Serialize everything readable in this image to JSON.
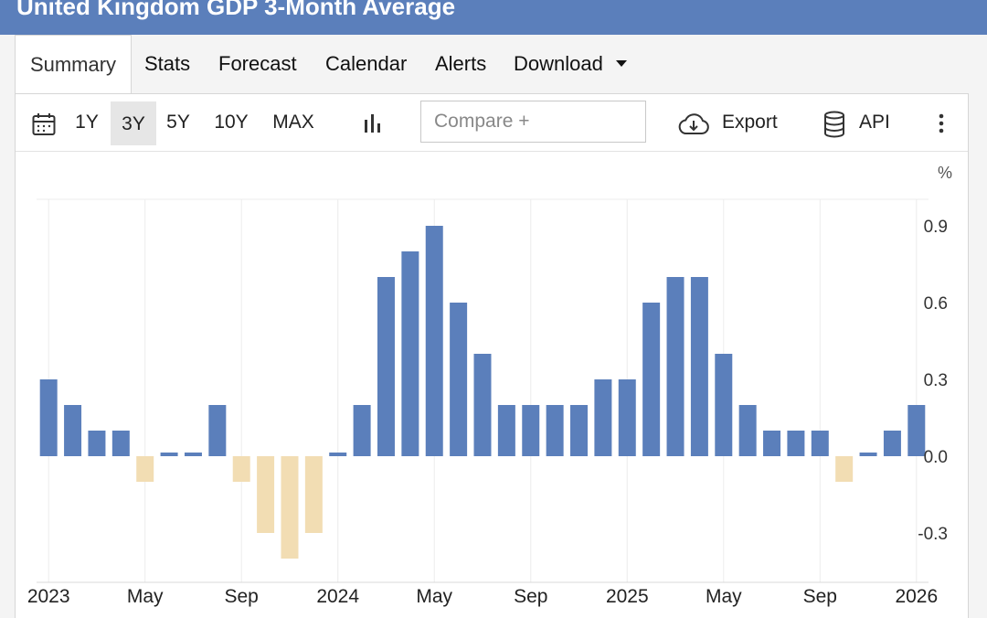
{
  "page": {
    "title": "United Kingdom GDP 3-Month Average"
  },
  "tabs": [
    {
      "label": "Summary",
      "active": true
    },
    {
      "label": "Stats"
    },
    {
      "label": "Forecast"
    },
    {
      "label": "Calendar"
    },
    {
      "label": "Alerts"
    },
    {
      "label": "Download",
      "dropdown": true
    }
  ],
  "toolbar": {
    "ranges": [
      "1Y",
      "3Y",
      "5Y",
      "10Y",
      "MAX"
    ],
    "active_range": "3Y",
    "compare_placeholder": "Compare +",
    "export_label": "Export",
    "api_label": "API",
    "icons": [
      "calendar-icon",
      "bar-chart-icon",
      "cloud-download-icon",
      "database-icon",
      "more-vertical-icon"
    ]
  },
  "colors": {
    "positive": "#5b7fbb",
    "negative": "#f2ddb3",
    "header": "#5b7fbb"
  },
  "chart_data": {
    "type": "bar",
    "title": "United Kingdom GDP 3-Month Average",
    "unit": "%",
    "ylim": [
      -0.4,
      1.0
    ],
    "yticks": [
      {
        "v": 0.9,
        "label": "0.9"
      },
      {
        "v": 0.6,
        "label": "0.6"
      },
      {
        "v": 0.3,
        "label": "0.3"
      },
      {
        "v": 0.0,
        "label": "0.0"
      },
      {
        "v": -0.3,
        "label": "-0.3"
      }
    ],
    "categories": [
      "Jan 2023",
      "Feb 2023",
      "Mar 2023",
      "Apr 2023",
      "May 2023",
      "Jun 2023",
      "Jul 2023",
      "Aug 2023",
      "Sep 2023",
      "Oct 2023",
      "Nov 2023",
      "Dec 2023",
      "Jan 2024",
      "Feb 2024",
      "Mar 2024",
      "Apr 2024",
      "May 2024",
      "Jun 2024",
      "Jul 2024",
      "Aug 2024",
      "Sep 2024",
      "Oct 2024",
      "Nov 2024",
      "Dec 2024",
      "Jan 2025",
      "Feb 2025",
      "Mar 2025",
      "Apr 2025",
      "May 2025",
      "Jun 2025",
      "Jul 2025",
      "Aug 2025",
      "Sep 2025",
      "Oct 2025",
      "Nov 2025",
      "Dec 2025",
      "Jan 2026"
    ],
    "values": [
      0.3,
      0.2,
      0.1,
      0.1,
      -0.1,
      0.01,
      0.01,
      0.2,
      -0.1,
      -0.3,
      -0.4,
      -0.3,
      0.01,
      0.2,
      0.7,
      0.8,
      0.9,
      0.6,
      0.4,
      0.2,
      0.2,
      0.2,
      0.2,
      0.3,
      0.3,
      0.6,
      0.7,
      0.7,
      0.4,
      0.2,
      0.1,
      0.1,
      0.1,
      -0.1,
      0.01,
      0.1,
      0.2
    ],
    "xticks": [
      {
        "i": 0,
        "label": "2023"
      },
      {
        "i": 4,
        "label": "May"
      },
      {
        "i": 8,
        "label": "Sep"
      },
      {
        "i": 12,
        "label": "2024"
      },
      {
        "i": 16,
        "label": "May"
      },
      {
        "i": 20,
        "label": "Sep"
      },
      {
        "i": 24,
        "label": "2025"
      },
      {
        "i": 28,
        "label": "May"
      },
      {
        "i": 32,
        "label": "Sep"
      },
      {
        "i": 36,
        "label": "2026"
      }
    ]
  }
}
